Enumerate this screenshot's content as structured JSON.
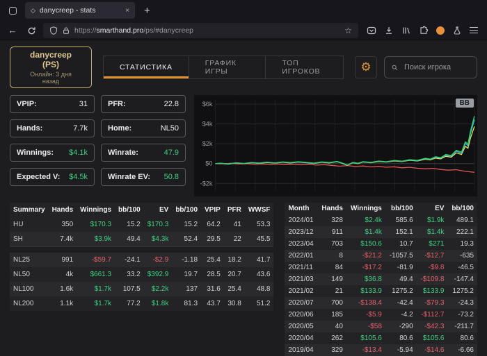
{
  "browser": {
    "tab_title": "danycreep - stats",
    "url_protocol": "https://",
    "url_domain": "smarthand.pro",
    "url_path": "/ps/#danycreep"
  },
  "icons": {
    "back": "←",
    "star": "☆",
    "close": "×",
    "new_tab": "+",
    "gear": "⚙",
    "favicon": "◇"
  },
  "header": {
    "player_name": "danycreep (PS)",
    "online_status": "Онлайн: 3 дня назад",
    "tabs": [
      {
        "id": "statistics",
        "label": "СТАТИСТИКА",
        "active": true
      },
      {
        "id": "game-graph",
        "label": "ГРАФИК ИГРЫ",
        "active": false
      },
      {
        "id": "top-players",
        "label": "ТОП ИГРОКОВ",
        "active": false
      }
    ],
    "search_placeholder": "Поиск игрока"
  },
  "stats": [
    {
      "key": "vpip",
      "label": "VPIP:",
      "value": "31",
      "color": "white"
    },
    {
      "key": "pfr",
      "label": "PFR:",
      "value": "22.8",
      "color": "white"
    },
    {
      "key": "hands",
      "label": "Hands:",
      "value": "7.7k",
      "color": "white"
    },
    {
      "key": "home",
      "label": "Home:",
      "value": "NL50",
      "color": "white"
    },
    {
      "key": "winnings",
      "label": "Winnings:",
      "value": "$4.1k",
      "color": "green"
    },
    {
      "key": "winrate",
      "label": "Winrate:",
      "value": "47.9",
      "color": "green"
    },
    {
      "key": "expected_v",
      "label": "Expected V:",
      "value": "$4.5k",
      "color": "green"
    },
    {
      "key": "winrate_ev",
      "label": "Winrate EV:",
      "value": "50.8",
      "color": "green"
    }
  ],
  "chart_data": {
    "type": "line",
    "badge": "BB",
    "grid": true,
    "ylim": [
      -2750,
      6500
    ],
    "y_ticks": [
      {
        "label": "$6k",
        "v": 6000
      },
      {
        "label": "$4k",
        "v": 4000
      },
      {
        "label": "$2k",
        "v": 2000
      },
      {
        "label": "$0",
        "v": 0
      },
      {
        "label": "-$2k",
        "v": -2000
      }
    ],
    "series": [
      {
        "name": "red",
        "color": "#e05555",
        "points": [
          [
            0,
            0
          ],
          [
            0.03,
            -20
          ],
          [
            0.06,
            30
          ],
          [
            0.09,
            -40
          ],
          [
            0.12,
            -10
          ],
          [
            0.15,
            -60
          ],
          [
            0.18,
            -30
          ],
          [
            0.21,
            -80
          ],
          [
            0.24,
            -40
          ],
          [
            0.27,
            -100
          ],
          [
            0.3,
            -60
          ],
          [
            0.33,
            -120
          ],
          [
            0.36,
            -80
          ],
          [
            0.39,
            -150
          ],
          [
            0.42,
            -110
          ],
          [
            0.45,
            -180
          ],
          [
            0.48,
            -260
          ],
          [
            0.51,
            -200
          ],
          [
            0.54,
            -290
          ],
          [
            0.57,
            -240
          ],
          [
            0.6,
            -330
          ],
          [
            0.63,
            -280
          ],
          [
            0.66,
            -370
          ],
          [
            0.69,
            -320
          ],
          [
            0.72,
            -420
          ],
          [
            0.75,
            -370
          ],
          [
            0.78,
            -470
          ],
          [
            0.81,
            -530
          ],
          [
            0.84,
            -480
          ],
          [
            0.87,
            -590
          ],
          [
            0.9,
            -660
          ],
          [
            0.93,
            -610
          ],
          [
            0.96,
            -760
          ],
          [
            1,
            -880
          ]
        ]
      },
      {
        "name": "yellow",
        "color": "#e8e04c",
        "points": [
          [
            0,
            0
          ],
          [
            0.02,
            20
          ],
          [
            0.05,
            -60
          ],
          [
            0.08,
            60
          ],
          [
            0.11,
            0
          ],
          [
            0.14,
            90
          ],
          [
            0.17,
            30
          ],
          [
            0.2,
            110
          ],
          [
            0.23,
            50
          ],
          [
            0.26,
            130
          ],
          [
            0.29,
            70
          ],
          [
            0.32,
            150
          ],
          [
            0.35,
            90
          ],
          [
            0.38,
            10
          ],
          [
            0.41,
            130
          ],
          [
            0.44,
            70
          ],
          [
            0.47,
            190
          ],
          [
            0.49,
            20
          ],
          [
            0.51,
            -180
          ],
          [
            0.53,
            80
          ],
          [
            0.55,
            0
          ],
          [
            0.57,
            160
          ],
          [
            0.6,
            90
          ],
          [
            0.63,
            210
          ],
          [
            0.66,
            150
          ],
          [
            0.69,
            260
          ],
          [
            0.72,
            200
          ],
          [
            0.75,
            330
          ],
          [
            0.78,
            260
          ],
          [
            0.81,
            440
          ],
          [
            0.83,
            370
          ],
          [
            0.85,
            560
          ],
          [
            0.87,
            480
          ],
          [
            0.89,
            740
          ],
          [
            0.91,
            650
          ],
          [
            0.93,
            1080
          ],
          [
            0.95,
            920
          ],
          [
            0.965,
            1750
          ],
          [
            0.975,
            1550
          ],
          [
            0.985,
            2600
          ],
          [
            1,
            3750
          ]
        ]
      },
      {
        "name": "blue",
        "color": "#36b3e8",
        "points": [
          [
            0,
            0
          ],
          [
            0.02,
            30
          ],
          [
            0.05,
            -50
          ],
          [
            0.08,
            70
          ],
          [
            0.11,
            10
          ],
          [
            0.14,
            100
          ],
          [
            0.17,
            40
          ],
          [
            0.2,
            130
          ],
          [
            0.23,
            60
          ],
          [
            0.26,
            150
          ],
          [
            0.29,
            90
          ],
          [
            0.32,
            170
          ],
          [
            0.35,
            110
          ],
          [
            0.38,
            30
          ],
          [
            0.41,
            150
          ],
          [
            0.44,
            90
          ],
          [
            0.47,
            210
          ],
          [
            0.49,
            40
          ],
          [
            0.51,
            -160
          ],
          [
            0.53,
            100
          ],
          [
            0.55,
            20
          ],
          [
            0.57,
            180
          ],
          [
            0.6,
            110
          ],
          [
            0.63,
            240
          ],
          [
            0.66,
            170
          ],
          [
            0.69,
            300
          ],
          [
            0.72,
            230
          ],
          [
            0.75,
            370
          ],
          [
            0.78,
            300
          ],
          [
            0.81,
            500
          ],
          [
            0.83,
            420
          ],
          [
            0.85,
            650
          ],
          [
            0.87,
            550
          ],
          [
            0.89,
            850
          ],
          [
            0.91,
            750
          ],
          [
            0.93,
            1250
          ],
          [
            0.95,
            1050
          ],
          [
            0.965,
            2050
          ],
          [
            0.975,
            1800
          ],
          [
            0.985,
            3050
          ],
          [
            1,
            4450
          ]
        ]
      },
      {
        "name": "green",
        "color": "#2fd26a",
        "points": [
          [
            0,
            0
          ],
          [
            0.02,
            40
          ],
          [
            0.05,
            -30
          ],
          [
            0.08,
            90
          ],
          [
            0.11,
            20
          ],
          [
            0.14,
            120
          ],
          [
            0.17,
            60
          ],
          [
            0.2,
            150
          ],
          [
            0.23,
            80
          ],
          [
            0.26,
            170
          ],
          [
            0.29,
            110
          ],
          [
            0.32,
            190
          ],
          [
            0.35,
            130
          ],
          [
            0.38,
            50
          ],
          [
            0.41,
            170
          ],
          [
            0.44,
            110
          ],
          [
            0.47,
            230
          ],
          [
            0.49,
            60
          ],
          [
            0.51,
            -140
          ],
          [
            0.53,
            120
          ],
          [
            0.55,
            40
          ],
          [
            0.57,
            200
          ],
          [
            0.6,
            130
          ],
          [
            0.63,
            260
          ],
          [
            0.66,
            190
          ],
          [
            0.69,
            320
          ],
          [
            0.72,
            250
          ],
          [
            0.75,
            400
          ],
          [
            0.78,
            330
          ],
          [
            0.81,
            540
          ],
          [
            0.83,
            460
          ],
          [
            0.85,
            700
          ],
          [
            0.87,
            600
          ],
          [
            0.89,
            920
          ],
          [
            0.91,
            820
          ],
          [
            0.93,
            1350
          ],
          [
            0.95,
            1150
          ],
          [
            0.965,
            2200
          ],
          [
            0.975,
            1950
          ],
          [
            0.985,
            3300
          ],
          [
            1,
            4800
          ]
        ]
      }
    ]
  },
  "summary_table": {
    "headers": [
      "Summary",
      "Hands",
      "Winnings",
      "bb/100",
      "EV",
      "bb/100",
      "VPIP",
      "PFR",
      "WWSF"
    ],
    "groups": [
      [
        [
          "HU",
          "350",
          {
            "t": "$170.3",
            "c": "g"
          },
          "15.2",
          {
            "t": "$170.3",
            "c": "g"
          },
          "15.2",
          "64.2",
          "41",
          "53.3"
        ],
        [
          "SH",
          "7.4k",
          {
            "t": "$3.9k",
            "c": "g"
          },
          "49.4",
          {
            "t": "$4.3k",
            "c": "g"
          },
          "52.4",
          "29.5",
          "22",
          "45.5"
        ]
      ],
      [
        [
          "NL25",
          "991",
          {
            "t": "-$59.7",
            "c": "r"
          },
          "-24.1",
          {
            "t": "-$2.9",
            "c": "r"
          },
          "-1.18",
          "25.4",
          "18.2",
          "41.7"
        ],
        [
          "NL50",
          "4k",
          {
            "t": "$661.3",
            "c": "g"
          },
          "33.2",
          {
            "t": "$392.9",
            "c": "g"
          },
          "19.7",
          "28.5",
          "20.7",
          "43.6"
        ],
        [
          "NL100",
          "1.6k",
          {
            "t": "$1.7k",
            "c": "g"
          },
          "107.5",
          {
            "t": "$2.2k",
            "c": "g"
          },
          "137",
          "31.6",
          "25.4",
          "48.8"
        ],
        [
          "NL200",
          "1.1k",
          {
            "t": "$1.7k",
            "c": "g"
          },
          "77.2",
          {
            "t": "$1.8k",
            "c": "g"
          },
          "81.3",
          "43.7",
          "30.8",
          "51.2"
        ]
      ]
    ]
  },
  "monthly_table": {
    "headers": [
      "Month",
      "Hands",
      "Winnings",
      "bb/100",
      "EV",
      "bb/100"
    ],
    "groups": [
      [
        [
          "2024/01",
          "328",
          {
            "t": "$2.4k",
            "c": "g"
          },
          "585.6",
          {
            "t": "$1.9k",
            "c": "g"
          },
          "489.1"
        ],
        [
          "2023/12",
          "911",
          {
            "t": "$1.4k",
            "c": "g"
          },
          "152.1",
          {
            "t": "$1.4k",
            "c": "g"
          },
          "222.1"
        ],
        [
          "2023/04",
          "703",
          {
            "t": "$150.6",
            "c": "g"
          },
          "10.7",
          {
            "t": "$271",
            "c": "g"
          },
          "19.3"
        ],
        [
          "2022/01",
          "8",
          {
            "t": "-$21.2",
            "c": "r"
          },
          "-1057.5",
          {
            "t": "-$12.7",
            "c": "r"
          },
          "-635"
        ],
        [
          "2021/11",
          "84",
          {
            "t": "-$17.2",
            "c": "r"
          },
          "-81.9",
          {
            "t": "-$9.8",
            "c": "r"
          },
          "-46.5"
        ],
        [
          "2021/03",
          "149",
          {
            "t": "$36.8",
            "c": "g"
          },
          "49.4",
          {
            "t": "-$109.8",
            "c": "r"
          },
          "-147.4"
        ],
        [
          "2021/02",
          "21",
          {
            "t": "$133.9",
            "c": "g"
          },
          "1275.2",
          {
            "t": "$133.9",
            "c": "g"
          },
          "1275.2"
        ],
        [
          "2020/07",
          "700",
          {
            "t": "-$138.4",
            "c": "r"
          },
          "-42.4",
          {
            "t": "-$79.3",
            "c": "r"
          },
          "-24.3"
        ],
        [
          "2020/06",
          "185",
          {
            "t": "-$5.9",
            "c": "r"
          },
          "-4.2",
          {
            "t": "-$112.7",
            "c": "r"
          },
          "-73.2"
        ],
        [
          "2020/05",
          "40",
          {
            "t": "-$58",
            "c": "r"
          },
          "-290",
          {
            "t": "-$42.3",
            "c": "r"
          },
          "-211.7"
        ],
        [
          "2020/04",
          "262",
          {
            "t": "$105.6",
            "c": "g"
          },
          "80.6",
          {
            "t": "$105.6",
            "c": "g"
          },
          "80.6"
        ],
        [
          "2019/04",
          "329",
          {
            "t": "-$13.4",
            "c": "r"
          },
          "-5.94",
          {
            "t": "-$14.6",
            "c": "r"
          },
          "-6.66"
        ]
      ]
    ]
  }
}
